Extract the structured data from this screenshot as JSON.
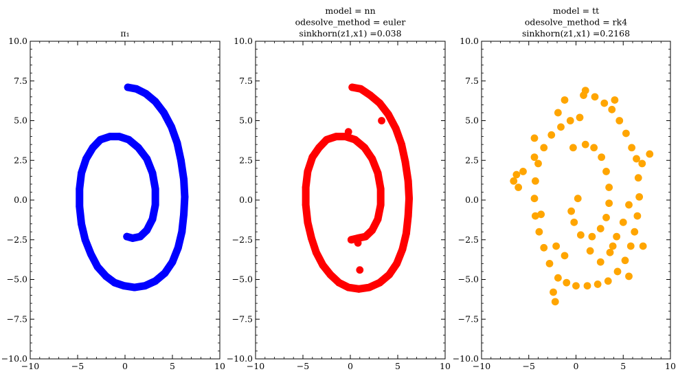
{
  "chart_data": [
    {
      "type": "scatter",
      "title_lines": [
        "π₁"
      ],
      "color": "#0000ff",
      "xlim": [
        -10,
        10
      ],
      "ylim": [
        -10,
        10
      ],
      "xticks": [
        -10,
        -5,
        0,
        5,
        10
      ],
      "yticks": [
        -10.0,
        -7.5,
        -5.0,
        -2.5,
        0.0,
        2.5,
        5.0,
        7.5,
        10.0
      ],
      "xtick_labels": [
        "−10",
        "−5",
        "0",
        "5",
        "10"
      ],
      "ytick_labels": [
        "−10.0",
        "−7.5",
        "−5.0",
        "−2.5",
        "0.0",
        "2.5",
        "5.0",
        "7.5",
        "10.0"
      ],
      "points": [
        [
          0.3,
          7.1
        ],
        [
          1.2,
          7.0
        ],
        [
          2.2,
          6.7
        ],
        [
          3.2,
          6.2
        ],
        [
          4.1,
          5.5
        ],
        [
          4.9,
          4.6
        ],
        [
          5.5,
          3.6
        ],
        [
          5.9,
          2.5
        ],
        [
          6.2,
          1.3
        ],
        [
          6.3,
          0.2
        ],
        [
          6.2,
          -0.9
        ],
        [
          6.0,
          -2.0
        ],
        [
          5.6,
          -3.0
        ],
        [
          5.0,
          -3.9
        ],
        [
          4.2,
          -4.6
        ],
        [
          3.2,
          -5.1
        ],
        [
          2.1,
          -5.4
        ],
        [
          1.0,
          -5.5
        ],
        [
          -0.1,
          -5.4
        ],
        [
          -1.1,
          -5.2
        ],
        [
          -2.0,
          -4.8
        ],
        [
          -2.9,
          -4.2
        ],
        [
          -3.6,
          -3.4
        ],
        [
          -4.2,
          -2.5
        ],
        [
          -4.6,
          -1.5
        ],
        [
          -4.8,
          -0.4
        ],
        [
          -4.8,
          0.7
        ],
        [
          -4.6,
          1.7
        ],
        [
          -4.1,
          2.6
        ],
        [
          -3.4,
          3.3
        ],
        [
          -2.6,
          3.8
        ],
        [
          -1.6,
          4.0
        ],
        [
          -0.6,
          4.0
        ],
        [
          0.4,
          3.8
        ],
        [
          1.4,
          3.3
        ],
        [
          2.3,
          2.6
        ],
        [
          2.9,
          1.7
        ],
        [
          3.2,
          0.7
        ],
        [
          3.2,
          -0.3
        ],
        [
          2.9,
          -1.2
        ],
        [
          2.3,
          -1.9
        ],
        [
          1.6,
          -2.3
        ],
        [
          0.8,
          -2.4
        ],
        [
          0.2,
          -2.3
        ]
      ]
    },
    {
      "type": "scatter",
      "title_lines": [
        "model = nn",
        "odesolve_method = euler",
        "sinkhorn(z1,x1) =0.038"
      ],
      "color": "#ff0000",
      "xlim": [
        -10,
        10
      ],
      "ylim": [
        -10,
        10
      ],
      "xticks": [
        -10,
        -5,
        0,
        5,
        10
      ],
      "yticks": [
        -10.0,
        -7.5,
        -5.0,
        -2.5,
        0.0,
        2.5,
        5.0,
        7.5,
        10.0
      ],
      "xtick_labels": [
        "−10",
        "−5",
        "0",
        "5",
        "10"
      ],
      "ytick_labels": [
        "−10.0",
        "−7.5",
        "−5.0",
        "−2.5",
        "0.0",
        "2.5",
        "5.0",
        "7.5",
        "10.0"
      ],
      "points": [
        [
          0.2,
          7.1
        ],
        [
          1.1,
          7.0
        ],
        [
          2.1,
          6.6
        ],
        [
          3.1,
          6.1
        ],
        [
          4.0,
          5.4
        ],
        [
          4.8,
          4.5
        ],
        [
          5.4,
          3.5
        ],
        [
          5.8,
          2.4
        ],
        [
          6.1,
          1.2
        ],
        [
          6.2,
          0.1
        ],
        [
          6.1,
          -1.0
        ],
        [
          5.9,
          -2.1
        ],
        [
          5.5,
          -3.1
        ],
        [
          4.9,
          -4.0
        ],
        [
          4.1,
          -4.7
        ],
        [
          3.1,
          -5.2
        ],
        [
          2.0,
          -5.5
        ],
        [
          0.9,
          -5.6
        ],
        [
          -0.2,
          -5.5
        ],
        [
          -1.2,
          -5.2
        ],
        [
          -2.1,
          -4.7
        ],
        [
          -2.9,
          -4.1
        ],
        [
          -3.6,
          -3.3
        ],
        [
          -4.1,
          -2.4
        ],
        [
          -4.5,
          -1.4
        ],
        [
          -4.7,
          -0.3
        ],
        [
          -4.7,
          0.8
        ],
        [
          -4.5,
          1.8
        ],
        [
          -4.0,
          2.7
        ],
        [
          -3.3,
          3.3
        ],
        [
          -2.5,
          3.8
        ],
        [
          -1.5,
          4.0
        ],
        [
          -0.5,
          4.0
        ],
        [
          0.5,
          3.8
        ],
        [
          1.5,
          3.3
        ],
        [
          2.3,
          2.6
        ],
        [
          2.9,
          1.7
        ],
        [
          3.2,
          0.7
        ],
        [
          3.2,
          -0.3
        ],
        [
          2.9,
          -1.2
        ],
        [
          2.3,
          -1.9
        ],
        [
          1.6,
          -2.3
        ],
        [
          0.8,
          -2.4
        ],
        [
          0.1,
          -2.5
        ],
        [
          3.3,
          5.0
        ],
        [
          1.0,
          -4.4
        ],
        [
          -0.2,
          4.3
        ],
        [
          0.8,
          -2.7
        ]
      ]
    },
    {
      "type": "scatter",
      "title_lines": [
        "model = tt",
        "odesolve_method = rk4",
        "sinkhorn(z1,x1) =0.2168"
      ],
      "color": "#ffa500",
      "xlim": [
        -10,
        10
      ],
      "ylim": [
        -10,
        10
      ],
      "xticks": [
        -10,
        -5,
        0,
        5,
        10
      ],
      "yticks": [
        -10.0,
        -7.5,
        -5.0,
        -2.5,
        0.0,
        2.5,
        5.0,
        7.5,
        10.0
      ],
      "xtick_labels": [
        "−10",
        "−5",
        "0",
        "5",
        "10"
      ],
      "ytick_labels": [
        "−10.0",
        "−7.5",
        "−5.0",
        "−2.5",
        "0.0",
        "2.5",
        "5.0",
        "7.5",
        "10.0"
      ],
      "points": [
        [
          1.0,
          6.9
        ],
        [
          2.0,
          6.5
        ],
        [
          3.0,
          6.1
        ],
        [
          3.8,
          5.7
        ],
        [
          4.6,
          5.0
        ],
        [
          5.3,
          4.2
        ],
        [
          5.9,
          3.3
        ],
        [
          6.4,
          2.6
        ],
        [
          7.0,
          2.3
        ],
        [
          7.8,
          2.9
        ],
        [
          6.6,
          1.4
        ],
        [
          6.7,
          0.2
        ],
        [
          6.5,
          -1.0
        ],
        [
          6.2,
          -2.0
        ],
        [
          5.8,
          -2.9
        ],
        [
          5.2,
          -3.8
        ],
        [
          4.4,
          -4.5
        ],
        [
          3.4,
          -5.1
        ],
        [
          2.3,
          -5.3
        ],
        [
          1.2,
          -5.4
        ],
        [
          0.0,
          -5.4
        ],
        [
          -1.0,
          -5.2
        ],
        [
          -1.9,
          -4.9
        ],
        [
          -2.4,
          -5.8
        ],
        [
          -2.2,
          -6.4
        ],
        [
          -2.8,
          -4.0
        ],
        [
          -3.4,
          -3.0
        ],
        [
          -3.9,
          -2.0
        ],
        [
          -4.3,
          -1.0
        ],
        [
          -4.4,
          0.1
        ],
        [
          -4.3,
          1.2
        ],
        [
          -4.0,
          2.3
        ],
        [
          -3.4,
          3.3
        ],
        [
          -2.6,
          4.1
        ],
        [
          -1.6,
          4.6
        ],
        [
          -0.6,
          5.0
        ],
        [
          0.4,
          5.2
        ],
        [
          -1.2,
          6.3
        ],
        [
          -1.9,
          5.5
        ],
        [
          -4.4,
          3.9
        ],
        [
          -5.6,
          1.8
        ],
        [
          -6.3,
          1.6
        ],
        [
          -6.6,
          1.2
        ],
        [
          -6.1,
          0.8
        ],
        [
          -4.4,
          2.7
        ],
        [
          -0.2,
          -1.4
        ],
        [
          0.5,
          -2.2
        ],
        [
          0.2,
          0.1
        ],
        [
          -0.3,
          3.3
        ],
        [
          1.0,
          3.5
        ],
        [
          1.9,
          3.3
        ],
        [
          2.7,
          2.7
        ],
        [
          3.2,
          1.8
        ],
        [
          3.5,
          0.8
        ],
        [
          3.5,
          -0.2
        ],
        [
          3.2,
          -1.1
        ],
        [
          2.6,
          -1.8
        ],
        [
          1.7,
          -2.3
        ],
        [
          1.5,
          -3.2
        ],
        [
          2.6,
          -3.9
        ],
        [
          3.6,
          -3.3
        ],
        [
          4.3,
          -2.3
        ],
        [
          5.0,
          -1.4
        ],
        [
          5.6,
          -0.3
        ],
        [
          5.6,
          -4.8
        ],
        [
          -2.1,
          -2.9
        ],
        [
          -1.2,
          -3.5
        ],
        [
          -0.5,
          -0.7
        ],
        [
          3.9,
          -2.9
        ],
        [
          0.8,
          6.6
        ],
        [
          4.1,
          6.3
        ],
        [
          -3.7,
          -0.9
        ],
        [
          7.1,
          -2.9
        ]
      ]
    }
  ]
}
